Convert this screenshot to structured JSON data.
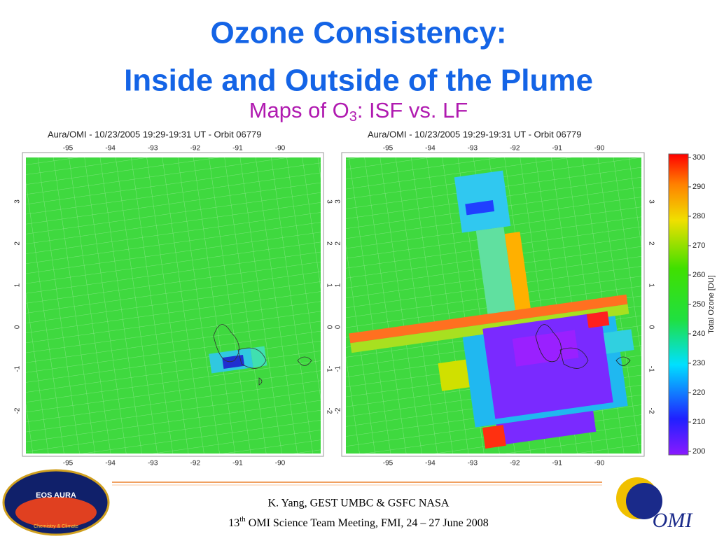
{
  "title": [
    "Ozone Consistency:",
    "Inside and Outside of the Plume"
  ],
  "subtitle": {
    "text": "Maps of O",
    "subscript": "3",
    "rest": ": ISF vs. LF"
  },
  "maps": [
    {
      "title": "Aura/OMI - 10/23/2005 19:29-19:31 UT - Orbit 06779",
      "lon_labels": [
        "-95",
        "-94",
        "-93",
        "-92",
        "-91",
        "-90"
      ],
      "lat_labels": [
        "3",
        "2",
        "1",
        "0",
        "-1",
        "-2"
      ]
    },
    {
      "title": "Aura/OMI - 10/23/2005 19:29-19:31 UT - Orbit 06779",
      "lon_labels": [
        "-95",
        "-94",
        "-93",
        "-92",
        "-91",
        "-90"
      ],
      "lat_labels": [
        "3",
        "2",
        "1",
        "0",
        "-1",
        "-2"
      ]
    }
  ],
  "colorbar": {
    "label": "Total Ozone [DU]",
    "lim": [
      200,
      300
    ],
    "ticks": [
      200,
      210,
      220,
      230,
      240,
      250,
      260,
      270,
      280,
      290,
      300
    ]
  },
  "footer": [
    "K. Yang, GEST UMBC  & GSFC NASA",
    {
      "pre": "13",
      "sup": "th",
      "text": " OMI Science Team Meeting, FMI, 24 – 27 June 2008"
    }
  ],
  "logos": {
    "eos": [
      "EOS AURA",
      "Chemistry & Climate"
    ],
    "omi": "OMI"
  }
}
